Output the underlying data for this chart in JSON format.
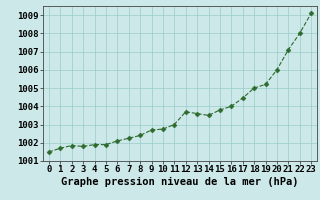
{
  "x": [
    0,
    1,
    2,
    3,
    4,
    5,
    6,
    7,
    8,
    9,
    10,
    11,
    12,
    13,
    14,
    15,
    16,
    17,
    18,
    19,
    20,
    21,
    22,
    23
  ],
  "y": [
    1001.5,
    1001.7,
    1001.85,
    1001.8,
    1001.9,
    1001.9,
    1002.1,
    1002.25,
    1002.4,
    1002.7,
    1002.75,
    1003.0,
    1003.7,
    1003.6,
    1003.5,
    1003.8,
    1004.0,
    1004.45,
    1005.0,
    1005.2,
    1006.0,
    1007.1,
    1008.0,
    1009.1
  ],
  "xlabel": "Graphe pression niveau de la mer (hPa)",
  "ylim": [
    1001,
    1009.5
  ],
  "xlim": [
    -0.5,
    23.5
  ],
  "yticks": [
    1001,
    1002,
    1003,
    1004,
    1005,
    1006,
    1007,
    1008,
    1009
  ],
  "xticks": [
    0,
    1,
    2,
    3,
    4,
    5,
    6,
    7,
    8,
    9,
    10,
    11,
    12,
    13,
    14,
    15,
    16,
    17,
    18,
    19,
    20,
    21,
    22,
    23
  ],
  "line_color": "#2d6a2d",
  "marker_color": "#2d6a2d",
  "bg_color": "#cce8e8",
  "grid_color": "#99cccc",
  "xlabel_fontsize": 7.5,
  "tick_fontsize": 6.5,
  "line_width": 0.8,
  "marker_size": 2.5
}
